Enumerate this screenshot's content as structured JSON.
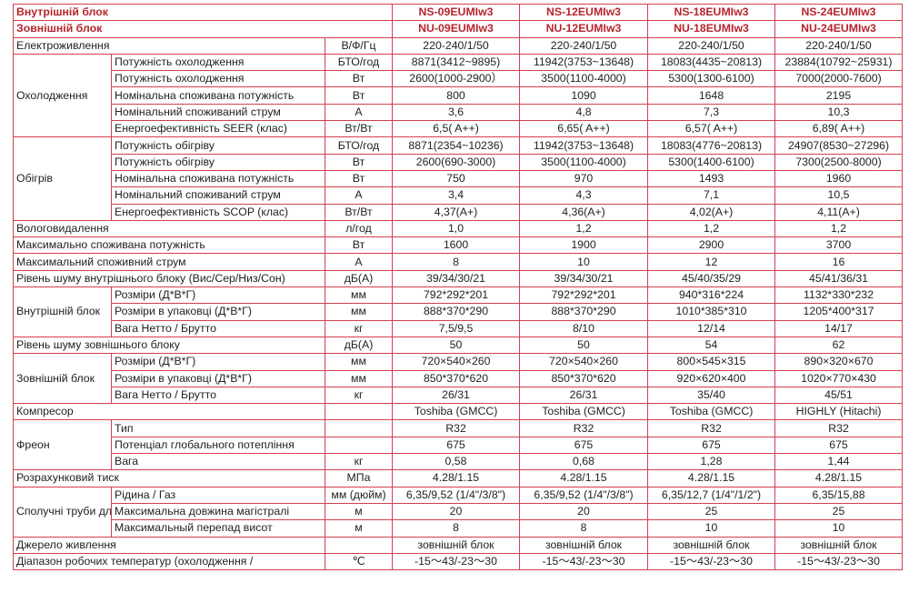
{
  "header_rows": [
    {
      "label": "Внутрішній блок",
      "values": [
        "NS-09EUMIw3",
        "NS-12EUMIw3",
        "NS-18EUMIw3",
        "NS-24EUMIw3"
      ]
    },
    {
      "label": "Зовнішній блок",
      "values": [
        "NU-09EUMIw3",
        "NU-12EUMIw3",
        "NU-18EUMIw3",
        "NU-24EUMIw3"
      ]
    }
  ],
  "sections": [
    {
      "label": "Електроживлення",
      "unit": "В/Ф/Гц",
      "values": [
        "220-240/1/50",
        "220-240/1/50",
        "220-240/1/50",
        "220-240/1/50"
      ]
    },
    {
      "group": "Охолодження",
      "rows": [
        {
          "label": "Потужність охолодження",
          "unit": "БТО/год",
          "values": [
            "8871(3412~9895)",
            "11942(3753~13648)",
            "18083(4435~20813)",
            "23884(10792~25931)"
          ]
        },
        {
          "label": "Потужність охолодження",
          "unit": "Вт",
          "values": [
            "2600(1000-2900）",
            "3500(1100-4000)",
            "5300(1300-6100)",
            "7000(2000-7600)"
          ]
        },
        {
          "label": "Номінальна споживана потужність",
          "unit": "Вт",
          "values": [
            "800",
            "1090",
            "1648",
            "2195"
          ]
        },
        {
          "label": "Номінальний споживаний струм",
          "unit": "А",
          "values": [
            "3,6",
            "4,8",
            "7,3",
            "10,3"
          ]
        },
        {
          "label": "Енергоефективність SEER (клас)",
          "unit": "Вт/Вт",
          "values": [
            "6,5( A++)",
            "6,65( A++)",
            "6,57( A++)",
            "6,89( A++)"
          ]
        }
      ]
    },
    {
      "group": "Обігрів",
      "rows": [
        {
          "label": "Потужність обігріву",
          "unit": "БТО/год",
          "values": [
            "8871(2354~10236)",
            "11942(3753~13648)",
            "18083(4776~20813)",
            "24907(8530~27296)"
          ]
        },
        {
          "label": "Потужність обігріву",
          "unit": "Вт",
          "values": [
            "2600(690-3000)",
            "3500(1100-4000)",
            "5300(1400-6100)",
            "7300(2500-8000)"
          ]
        },
        {
          "label": "Номінальна споживана потужність",
          "unit": "Вт",
          "values": [
            "750",
            "970",
            "1493",
            "1960"
          ]
        },
        {
          "label": "Номінальний споживаний струм",
          "unit": "А",
          "values": [
            "3,4",
            "4,3",
            "7,1",
            "10,5"
          ]
        },
        {
          "label": "Енергоефективність SCOP (клас)",
          "unit": "Вт/Вт",
          "values": [
            "4,37(A+)",
            "4,36(A+)",
            "4,02(A+)",
            "4,11(A+)"
          ]
        }
      ]
    },
    {
      "label": "Вологовидалення",
      "unit": "л/год",
      "values": [
        "1,0",
        "1,2",
        "1,2",
        "1,2"
      ]
    },
    {
      "label": "Максимально споживана потужність",
      "unit": "Вт",
      "values": [
        "1600",
        "1900",
        "2900",
        "3700"
      ]
    },
    {
      "label": "Максимальний споживний струм",
      "unit": "А",
      "values": [
        "8",
        "10",
        "12",
        "16"
      ]
    },
    {
      "label": "Рівень шуму внутрішнього блоку (Вис/Сер/Низ/Сон)",
      "unit": "дБ(А)",
      "values": [
        "39/34/30/21",
        "39/34/30/21",
        "45/40/35/29",
        "45/41/36/31"
      ]
    },
    {
      "group": "Внутрішній блок",
      "rows": [
        {
          "label": "Розміри (Д*В*Г)",
          "unit": "мм",
          "values": [
            "792*292*201",
            "792*292*201",
            "940*316*224",
            "1132*330*232"
          ]
        },
        {
          "label": "Розміри в упаковці (Д*В*Г)",
          "unit": "мм",
          "values": [
            "888*370*290",
            "888*370*290",
            "1010*385*310",
            "1205*400*317"
          ]
        },
        {
          "label": "Вага Нетто / Брутто",
          "unit": "кг",
          "values": [
            "7,5/9,5",
            "8/10",
            "12/14",
            "14/17"
          ]
        }
      ]
    },
    {
      "label": "Рівень шуму зовнішнього блоку",
      "unit": "дБ(А)",
      "values": [
        "50",
        "50",
        "54",
        "62"
      ]
    },
    {
      "group": "Зовнішній блок",
      "rows": [
        {
          "label": "Розміри (Д*В*Г)",
          "unit": "мм",
          "values": [
            "720×540×260",
            "720×540×260",
            "800×545×315",
            "890×320×670"
          ]
        },
        {
          "label": "Розміри в упаковці (Д*В*Г)",
          "unit": "мм",
          "values": [
            "850*370*620",
            "850*370*620",
            "920×620×400",
            "1020×770×430"
          ]
        },
        {
          "label": "Вага Нетто / Брутто",
          "unit": "кг",
          "values": [
            "26/31",
            "26/31",
            "35/40",
            "45/51"
          ]
        }
      ]
    },
    {
      "label": "Компресор",
      "unit": "",
      "values": [
        "Toshiba (GMCC)",
        "Toshiba (GMCC)",
        "Toshiba (GMCC)",
        "HIGHLY (Hitachi)"
      ]
    },
    {
      "group": "Фреон",
      "rows": [
        {
          "label": "Тип",
          "unit": "",
          "values": [
            "R32",
            "R32",
            "R32",
            "R32"
          ]
        },
        {
          "label": "Потенціал глобального потепління",
          "unit": "",
          "values": [
            "675",
            "675",
            "675",
            "675"
          ]
        },
        {
          "label": "Вага",
          "unit": "кг",
          "values": [
            "0,58",
            "0,68",
            "1,28",
            "1,44"
          ]
        }
      ]
    },
    {
      "label": "Розрахунковий тиск",
      "unit": "МПа",
      "values": [
        "4.28/1.15",
        "4.28/1.15",
        "4.28/1.15",
        "4.28/1.15"
      ]
    },
    {
      "group": "Сполучні труби для холодоагенту",
      "rows": [
        {
          "label": "Рідина / Газ",
          "unit": "мм (дюйм)",
          "values": [
            "6,35/9,52 (1/4\"/3/8\")",
            "6,35/9,52 (1/4\"/3/8\")",
            "6,35/12,7 (1/4\"/1/2\")",
            "6,35/15,88"
          ]
        },
        {
          "label": "Максимальна довжина магістралі",
          "unit": "м",
          "values": [
            "20",
            "20",
            "25",
            "25"
          ]
        },
        {
          "label": "Максимальный перепад висот",
          "unit": "м",
          "values": [
            "8",
            "8",
            "10",
            "10"
          ]
        }
      ]
    },
    {
      "label": "Джерело живлення",
      "unit": "",
      "values": [
        "зовнішній блок",
        "зовнішній блок",
        "зовнішній блок",
        "зовнішній блок"
      ]
    },
    {
      "label": "Діапазон робочих температур (охолодження /",
      "unit": "℃",
      "values": [
        "-15～43/-23～30",
        "-15～43/-23～30",
        "-15～43/-23～30",
        "-15～43/-23～30"
      ]
    }
  ],
  "colors": {
    "border": "#d2404c",
    "header_text": "#b8242c",
    "text": "#222222"
  }
}
